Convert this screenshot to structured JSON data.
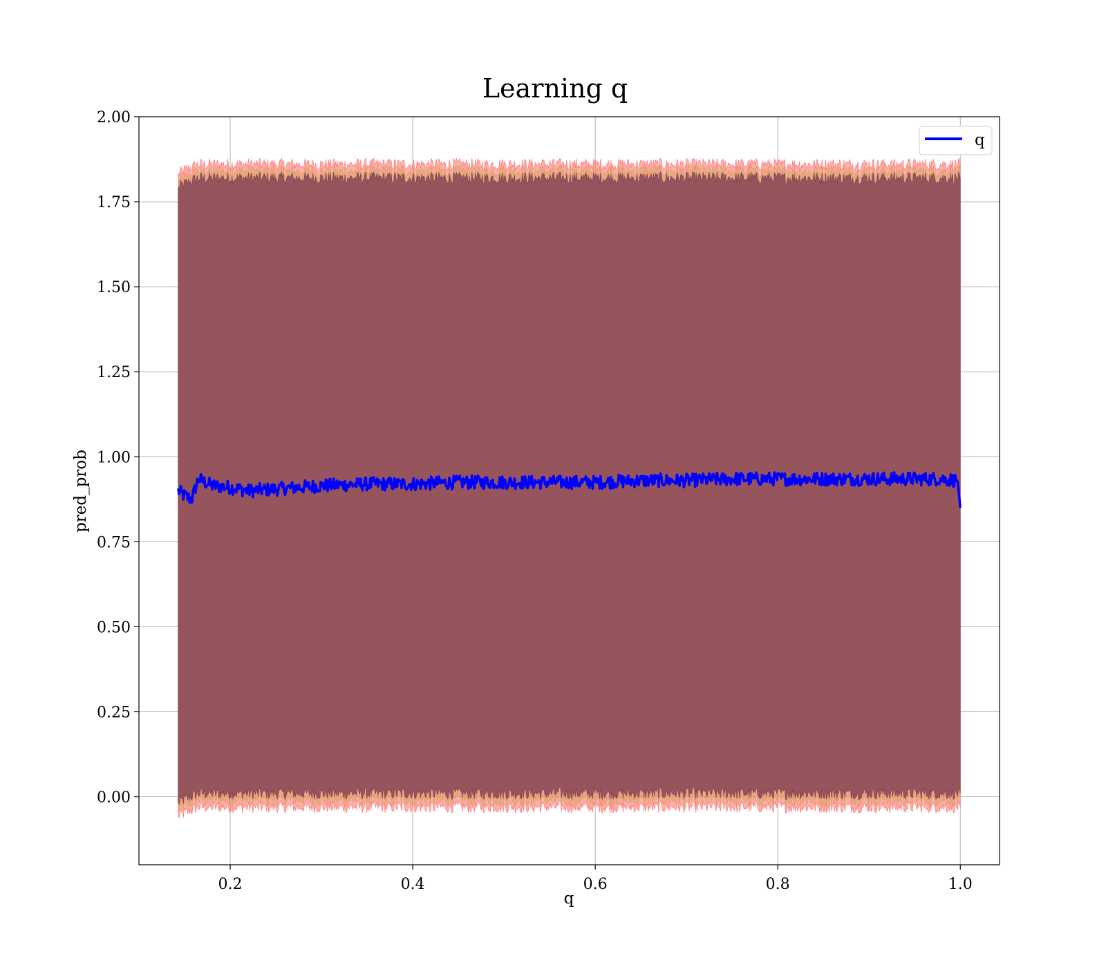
{
  "chart_data": {
    "type": "line",
    "title": "Learning q",
    "xlabel": "q",
    "ylabel": "pred_prob",
    "xlim": [
      0.1,
      1.043
    ],
    "ylim": [
      -0.2,
      2.0
    ],
    "x_ticks": [
      0.2,
      0.4,
      0.6,
      0.8,
      1.0
    ],
    "x_tick_labels": [
      "0.2",
      "0.4",
      "0.6",
      "0.8",
      "1.0"
    ],
    "y_ticks": [
      0.0,
      0.25,
      0.5,
      0.75,
      1.0,
      1.25,
      1.5,
      1.75,
      2.0
    ],
    "y_tick_labels": [
      "0.00",
      "0.25",
      "0.50",
      "0.75",
      "1.00",
      "1.25",
      "1.50",
      "1.75",
      "2.00"
    ],
    "grid": true,
    "legend": {
      "position": "top-right",
      "entries": [
        {
          "label": "q",
          "color": "#0000ff"
        }
      ]
    },
    "x_range": [
      0.143,
      1.0
    ],
    "series": [
      {
        "name": "q",
        "color": "#0000ff",
        "x": [
          0.143,
          0.15,
          0.158,
          0.165,
          0.18,
          0.2,
          0.22,
          0.25,
          0.3,
          0.35,
          0.4,
          0.45,
          0.5,
          0.55,
          0.6,
          0.65,
          0.7,
          0.75,
          0.8,
          0.85,
          0.9,
          0.95,
          0.98,
          0.997,
          1.0
        ],
        "values": [
          0.9,
          0.885,
          0.875,
          0.935,
          0.915,
          0.91,
          0.9,
          0.905,
          0.915,
          0.92,
          0.92,
          0.925,
          0.925,
          0.925,
          0.925,
          0.93,
          0.93,
          0.935,
          0.935,
          0.935,
          0.935,
          0.935,
          0.935,
          0.93,
          0.85
        ]
      }
    ],
    "bands": [
      {
        "name": "outer",
        "color": "#ff6b6b",
        "lower": -0.03,
        "upper": 1.86
      },
      {
        "name": "middle",
        "color": "#d9a35e",
        "lower": -0.01,
        "upper": 1.84
      },
      {
        "name": "inner",
        "color": "#7a3a50",
        "lower": 0.01,
        "upper": 1.82
      }
    ]
  }
}
